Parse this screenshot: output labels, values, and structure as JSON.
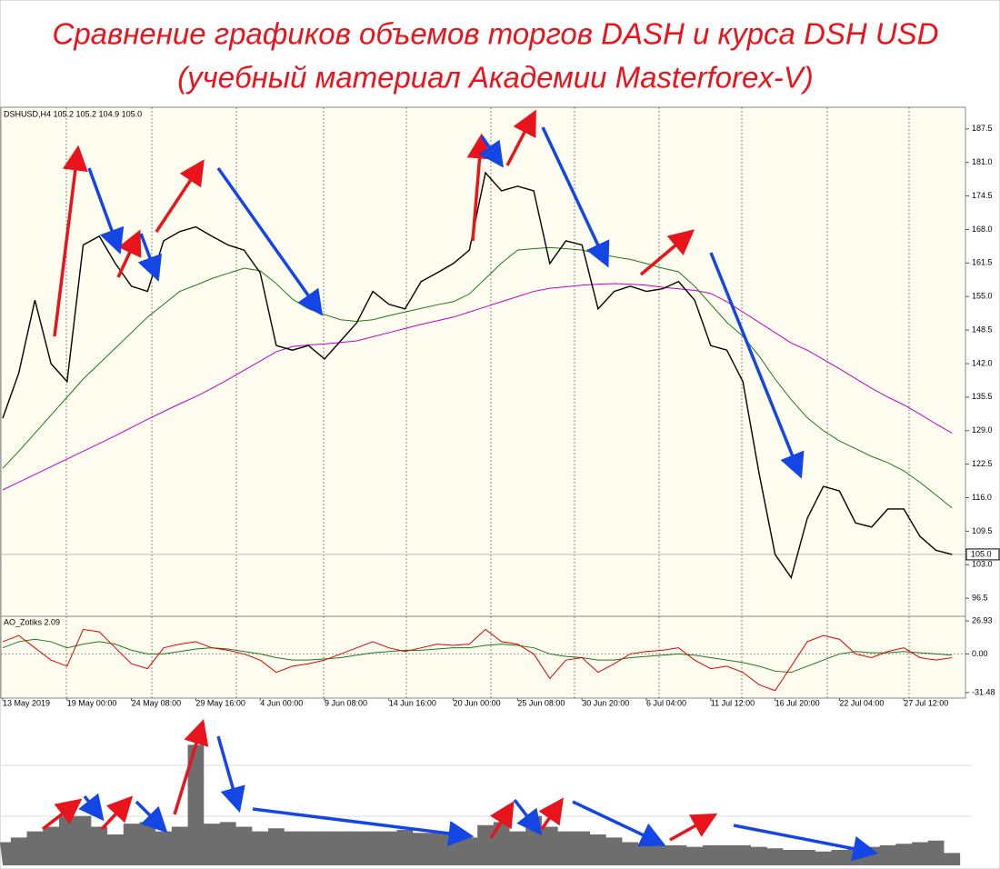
{
  "chart_data": [
    {
      "type": "line",
      "title": "Сравнение графиков объемов торгов DASH и курса DSH USD",
      "subtitle": "(учебный материал Академии Masterforex-V)",
      "label": "DSHUSD,H4  105.2 105.2 104.9 105.0",
      "ylim": [
        93,
        191.7
      ],
      "yticks": [
        187.5,
        {
          "value": 181,
          "label": "181.0"
        },
        174.5,
        {
          "value": 168,
          "label": "168.0"
        },
        161.5,
        {
          "value": 155,
          "label": "155.0"
        },
        148.5,
        {
          "value": 142,
          "label": "142.0"
        },
        135.5,
        {
          "value": 129,
          "label": "129.0"
        },
        122.5,
        {
          "value": 116,
          "label": "116.0"
        },
        109.5,
        {
          "value": 103,
          "label": "103.0"
        },
        96.5
      ],
      "current": {
        "value": 105,
        "label": "105.0"
      },
      "series": [
        {
          "color": "#c000c0",
          "values": [
            117.5,
            119,
            120.5,
            122,
            123.5,
            125,
            126.5,
            128,
            129.6,
            131.2,
            132.7,
            134.2,
            135.6,
            137.2,
            138.9,
            140.7,
            142.5,
            144.3,
            145.3,
            145.6,
            145.8,
            146.1,
            146.4,
            147.2,
            148,
            148.8,
            149.6,
            150.3,
            151,
            152,
            153,
            154,
            155,
            156,
            156.6,
            156.9,
            157.2,
            157.4,
            157.5,
            157.4,
            157.2,
            156.8,
            156.5,
            156.2,
            155.6,
            154,
            152,
            150,
            148,
            146,
            144.6,
            142.8,
            141,
            139.1,
            137.2,
            135.5,
            134,
            132.2,
            130.3,
            128.5
          ]
        },
        {
          "color": "#1a7a1a",
          "values": [
            121.7,
            125,
            128.5,
            132,
            135.5,
            139,
            142,
            145,
            148,
            151,
            153.5,
            156,
            157.2,
            158.5,
            159.5,
            160.5,
            160,
            157.5,
            154.5,
            152.6,
            151.5,
            150.5,
            150.2,
            150.5,
            151.3,
            152,
            152.7,
            153.4,
            154,
            155.5,
            158.5,
            161.5,
            164,
            164.3,
            164.5,
            164.3,
            164,
            163.3,
            162.7,
            162.2,
            161.4,
            160.5,
            159.8,
            157,
            153.5,
            150,
            147.3,
            143.5,
            139,
            135,
            131.5,
            129,
            127,
            125.5,
            124,
            122.8,
            121.2,
            119,
            116.5,
            114
          ]
        },
        {
          "color": "#000000",
          "values": [
            131.4,
            140.2,
            154.3,
            142,
            138.5,
            165,
            166.7,
            161.4,
            157,
            156,
            165.8,
            167.6,
            168.5,
            166.7,
            165,
            164,
            159.6,
            145.5,
            144.6,
            145.5,
            142.9,
            146.4,
            149.9,
            156,
            153.5,
            152.6,
            157.9,
            159.6,
            161.4,
            164,
            179,
            175.5,
            176.4,
            175.5,
            161.4,
            165.8,
            165,
            152.6,
            156,
            157,
            156,
            156.5,
            157.9,
            154.3,
            145.5,
            144.6,
            138.5,
            120.8,
            105,
            100.5,
            112,
            118.2,
            117.3,
            111.1,
            110.3,
            113.8,
            113.8,
            108.5,
            105.8,
            105
          ]
        }
      ]
    },
    {
      "type": "line",
      "label": "AO_Zotiks 2.09",
      "categories": [
        "13 May 2019",
        null,
        null,
        null,
        "19 May 00:00",
        null,
        null,
        null,
        "24 May 08:00",
        null,
        null,
        null,
        "29 May 16:00",
        null,
        null,
        null,
        "4 Jun 00:00",
        null,
        null,
        null,
        "9 Jun 08:00",
        null,
        null,
        null,
        "14 Jun 16:00",
        null,
        null,
        null,
        "20 Jun 00:00",
        null,
        null,
        null,
        "25 Jun 08:00",
        null,
        null,
        null,
        "30 Jun 20:00",
        null,
        null,
        null,
        "6 Jul 04:00",
        null,
        null,
        null,
        "11 Jul 12:00",
        null,
        null,
        null,
        "16 Jul 20:00",
        null,
        null,
        null,
        "22 Jul 04:00",
        null,
        null,
        null,
        "27 Jul 12:00",
        null,
        null,
        null
      ],
      "ylim": [
        -36,
        30.7
      ],
      "yticks": [
        26.93,
        {
          "value": 0,
          "label": "0.00"
        },
        -31.48
      ],
      "series": [
        {
          "color": "#1a7a1a",
          "values": [
            5,
            10,
            12,
            10,
            5,
            8,
            10,
            8,
            3,
            0,
            0,
            2,
            4,
            5,
            4,
            2,
            0,
            -3,
            -5,
            -5,
            -4,
            -3,
            -1,
            1,
            2,
            3,
            3,
            4,
            5,
            5,
            7,
            8,
            7,
            5,
            0,
            -2,
            -3,
            -5,
            -5,
            -3,
            -2,
            -1,
            0,
            -1,
            -3,
            -5,
            -7,
            -10,
            -14,
            -15,
            -10,
            -5,
            0,
            2,
            1,
            1,
            2,
            1,
            0,
            -1
          ]
        },
        {
          "color": "#e00000",
          "values": [
            10,
            15,
            5,
            -5,
            -10,
            20,
            18,
            5,
            -8,
            -12,
            5,
            8,
            10,
            5,
            3,
            0,
            -5,
            -15,
            -10,
            -8,
            -5,
            0,
            5,
            10,
            5,
            2,
            5,
            8,
            7,
            8,
            20,
            10,
            8,
            0,
            -20,
            -5,
            -3,
            -15,
            -8,
            0,
            2,
            3,
            5,
            -5,
            -12,
            -10,
            -15,
            -25,
            -30,
            -10,
            10,
            15,
            12,
            0,
            -3,
            2,
            5,
            -3,
            -5,
            -3
          ]
        }
      ]
    },
    {
      "type": "area",
      "color": "#6e6e6e",
      "ylim": [
        0,
        100
      ],
      "values": [
        15,
        18,
        22,
        25,
        32,
        32,
        25,
        20,
        27,
        28,
        22,
        25,
        78,
        27,
        28,
        25,
        22,
        24,
        22,
        22,
        22,
        22,
        22,
        22,
        22,
        23,
        21,
        21,
        20,
        18,
        26,
        28,
        22,
        32,
        25,
        22,
        22,
        20,
        18,
        15,
        14,
        13,
        13,
        12,
        13,
        13,
        13,
        12,
        11,
        10,
        10,
        9,
        10,
        12,
        12,
        13,
        14,
        15,
        16,
        8
      ]
    }
  ]
}
